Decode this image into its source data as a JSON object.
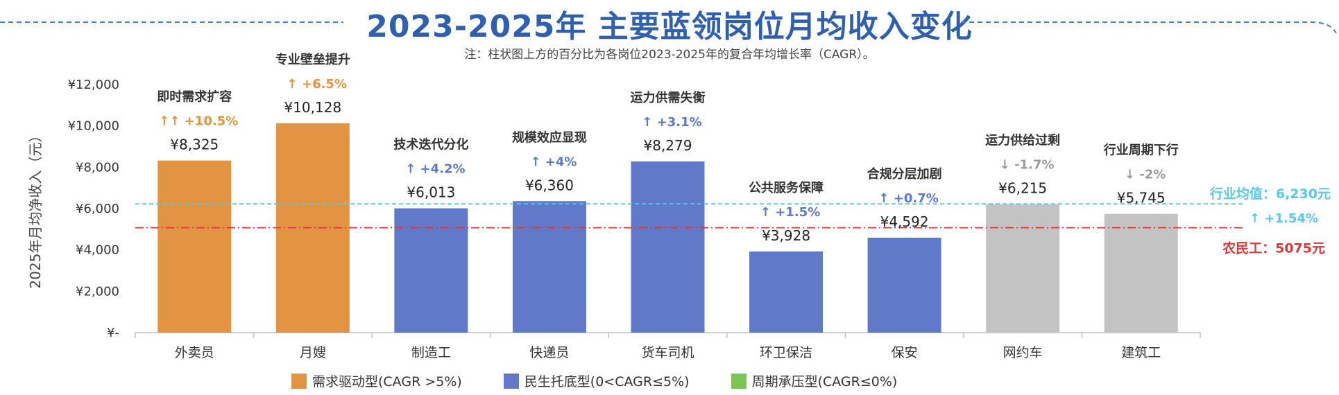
{
  "title": "2023-2025年 主要蓝领岗位月均收入变化",
  "note": "注：柱状图上方的百分比为各岗位2023-2025年的复合年均增长率（CAGR）。",
  "colors": {
    "demand": "#e39442",
    "livelihood": "#6079c8",
    "cyclical": "#7cc456",
    "gray": "#c3c3c3",
    "industry_line": "#5bc8ea",
    "migrant_line": "#d83a3a",
    "up_orange": "#e39442",
    "up_blue": "#5a78d1",
    "down_gray": "#9a9a9a"
  },
  "chart_data": {
    "type": "bar",
    "ylabel": "2025年月均净收入（元）",
    "ylim": [
      0,
      12000
    ],
    "yticks": [
      {
        "value": 0,
        "label": "¥-"
      },
      {
        "value": 2000,
        "label": "¥2,000"
      },
      {
        "value": 4000,
        "label": "¥4,000"
      },
      {
        "value": 6000,
        "label": "¥6,000"
      },
      {
        "value": 8000,
        "label": "¥8,000"
      },
      {
        "value": 10000,
        "label": "¥10,000"
      },
      {
        "value": 12000,
        "label": "¥12,000"
      }
    ],
    "categories": [
      "外卖员",
      "月嫂",
      "制造工",
      "快递员",
      "货车司机",
      "环卫保洁",
      "保安",
      "网约车",
      "建筑工"
    ],
    "values": [
      8325,
      10128,
      6013,
      6360,
      8279,
      3928,
      4592,
      6215,
      5745
    ],
    "value_labels": [
      "¥8,325",
      "¥10,128",
      "¥6,013",
      "¥6,360",
      "¥8,279",
      "¥3,928",
      "¥4,592",
      "¥6,215",
      "¥5,745"
    ],
    "color_groups": [
      "demand",
      "demand",
      "livelihood",
      "livelihood",
      "livelihood",
      "livelihood",
      "livelihood",
      "gray",
      "gray"
    ],
    "annotations": [
      "即时需求扩容",
      "专业壁垒提升",
      "技术迭代分化",
      "规模效应显现",
      "运力供需失衡",
      "公共服务保障",
      "合规分层加剧",
      "运力供给过剩",
      "行业周期下行"
    ],
    "cagr_labels": [
      "+10.5%",
      "+6.5%",
      "+4.2%",
      "+4%",
      "+3.1%",
      "+1.5%",
      "+0.7%",
      "-1.7%",
      "-2%"
    ],
    "arrows": [
      "↑↑",
      "↑",
      "↑",
      "↑",
      "↑",
      "↑",
      "↑",
      "↓",
      "↓"
    ],
    "arrow_colors": [
      "up_orange",
      "up_orange",
      "up_blue",
      "up_blue",
      "up_blue",
      "up_blue",
      "up_blue",
      "down_gray",
      "down_gray"
    ],
    "reference_lines": [
      {
        "name": "industry-average",
        "value": 6230,
        "label": "行业均值：6,230元",
        "sublabel": "+1.54%",
        "arrow": "↑",
        "style": "dashed",
        "color": "industry_line"
      },
      {
        "name": "migrant-worker",
        "value": 5075,
        "label": "农民工：5075元",
        "style": "dashdot",
        "color": "migrant_line"
      }
    ],
    "legend": [
      {
        "label": "需求驱动型(CAGR >5%)",
        "color": "demand"
      },
      {
        "label": "民生托底型(0<CAGR≤5%)",
        "color": "livelihood"
      },
      {
        "label": "周期承压型(CAGR≤0%)",
        "color": "cyclical"
      }
    ],
    "legend_position": "bottom"
  }
}
